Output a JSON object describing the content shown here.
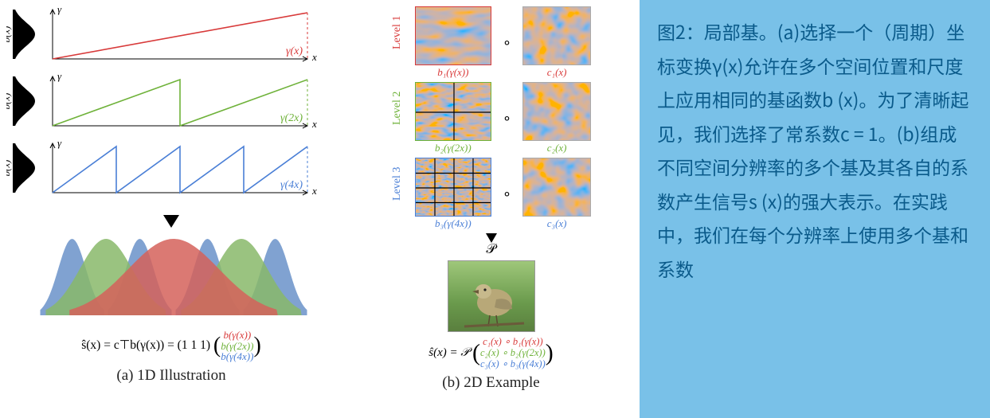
{
  "panelA": {
    "caption": "(a) 1D Illustration",
    "y_axis_label": "γ",
    "x_axis_label": "x",
    "b_label": "b(x)",
    "levels": [
      {
        "label": "γ(x)",
        "color": "#d83a3a",
        "periods": 1
      },
      {
        "label": "γ(2x)",
        "color": "#6fb23a",
        "periods": 2
      },
      {
        "label": "γ(4x)",
        "color": "#4a7fd6",
        "periods": 4
      }
    ],
    "bump_colors": {
      "red": "#d5625a",
      "green": "#88b86a",
      "blue": "#6a92c9"
    },
    "formula_lhs": "ŝ(x) = c⊤b(γ(x)) = (1  1  1)",
    "formula_rows": [
      {
        "text": "b(γ(x))",
        "color": "#d83a3a"
      },
      {
        "text": "b(γ(2x))",
        "color": "#6fb23a"
      },
      {
        "text": "b(γ(4x))",
        "color": "#4a7fd6"
      }
    ]
  },
  "panelB": {
    "caption": "(b) 2D Example",
    "levels": [
      {
        "name": "Level 1",
        "color": "#d83a3a",
        "b_label": "b₁(γ(x))",
        "c_label": "c₁(x)",
        "grid": 1
      },
      {
        "name": "Level 2",
        "color": "#6fb23a",
        "b_label": "b₂(γ(2x))",
        "c_label": "c₂(x)",
        "grid": 2
      },
      {
        "name": "Level 3",
        "color": "#4a7fd6",
        "b_label": "b₃(γ(4x))",
        "c_label": "c₃(x)",
        "grid": 4
      }
    ],
    "op_symbol": "∘",
    "proj_symbol": "𝒫",
    "formula_lhs": "ŝ(x) = 𝒫",
    "formula_rows": [
      {
        "left": "c₁(x) ∘ b₁(γ(x))",
        "color": "#d83a3a"
      },
      {
        "left": "c₂(x) ∘ b₂(γ(2x))",
        "color": "#6fb23a"
      },
      {
        "left": "c₃(x) ∘ b₃(γ(4x))",
        "color": "#4a7fd6"
      }
    ]
  },
  "panelC": {
    "background": "#79c1e8",
    "text_color": "#0a5a8a",
    "text": "图2：局部基。(a)选择一个（周期）坐标变换γ(x)允许在多个空间位置和尺度上应用相同的基函数b (x)。为了清晰起见，我们选择了常系数c = 1。(b)组成不同空间分辨率的多个基及其各自的系数产生信号s (x)的强大表示。在实践中，我们在每个分辨率上使用多个基和系数"
  }
}
